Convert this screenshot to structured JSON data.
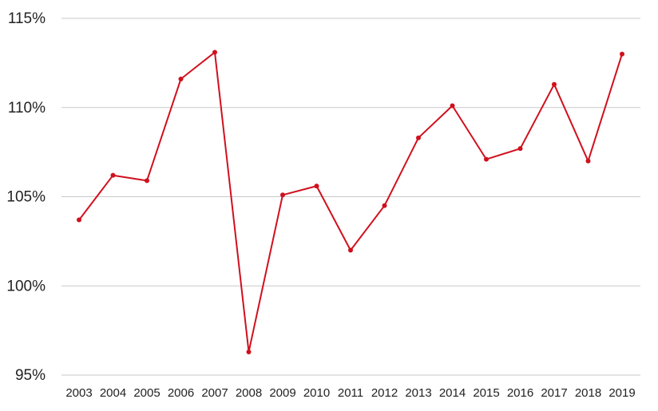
{
  "chart_data": {
    "type": "line",
    "title": "",
    "xlabel": "",
    "ylabel": "",
    "x": [
      "2003",
      "2004",
      "2005",
      "2006",
      "2007",
      "2008",
      "2009",
      "2010",
      "2011",
      "2012",
      "2013",
      "2014",
      "2015",
      "2016",
      "2017",
      "2018",
      "2019"
    ],
    "series": [
      {
        "values": [
          103.7,
          106.2,
          105.9,
          111.6,
          113.1,
          96.3,
          105.1,
          105.6,
          102.0,
          104.5,
          108.3,
          110.1,
          107.1,
          107.7,
          111.3,
          107.0,
          113.0
        ],
        "color": "#d0101e"
      }
    ],
    "ylim": [
      95,
      115
    ],
    "yticks": [
      {
        "value": 95,
        "label": "95%"
      },
      {
        "value": 100,
        "label": "100%"
      },
      {
        "value": 105,
        "label": "105%"
      },
      {
        "value": 110,
        "label": "110%"
      },
      {
        "value": 115,
        "label": "115%"
      }
    ],
    "grid": true,
    "legend": "none"
  }
}
